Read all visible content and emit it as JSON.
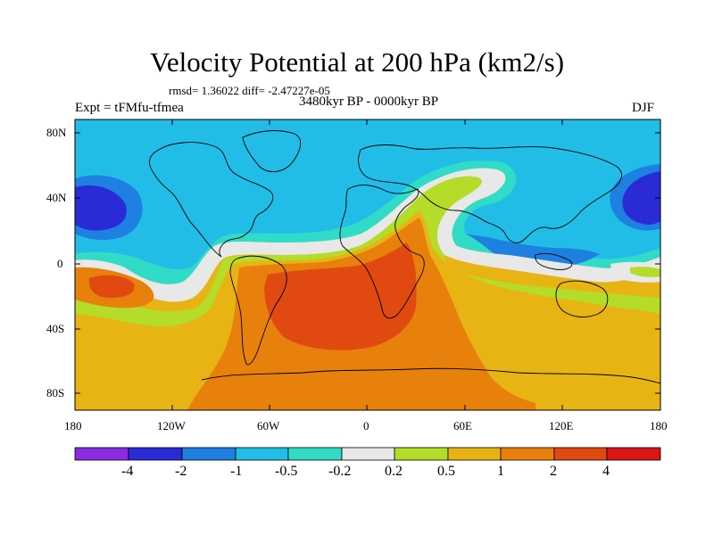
{
  "header": {
    "title": "Velocity Potential at 200 hPa (km2/s)",
    "stats": "rmsd= 1.36022 diff= -2.47227e-05",
    "period": "3480kyr BP - 0000kyr BP",
    "experiment": "Expt = tFMfu-tfmea",
    "season": "DJF"
  },
  "map": {
    "lon_range": [
      -180,
      180
    ],
    "lat_range": [
      -90,
      90
    ],
    "lat_labels": [
      "80N",
      "40N",
      "0",
      "40S",
      "80S"
    ],
    "lon_labels": [
      "180",
      "120W",
      "60W",
      "0",
      "60E",
      "120E",
      "180"
    ]
  },
  "colorbar": {
    "levels": [
      "-4",
      "-2",
      "-1",
      "-0.5",
      "-0.2",
      "0.2",
      "0.5",
      "1",
      "2",
      "4"
    ],
    "colors": [
      "#8a2be2",
      "#2a2ad6",
      "#1e80e0",
      "#22bde6",
      "#30dcc8",
      "#e8e8e8",
      "#b4dc28",
      "#e8b414",
      "#e8800c",
      "#e04a10",
      "#dc1414"
    ]
  }
}
